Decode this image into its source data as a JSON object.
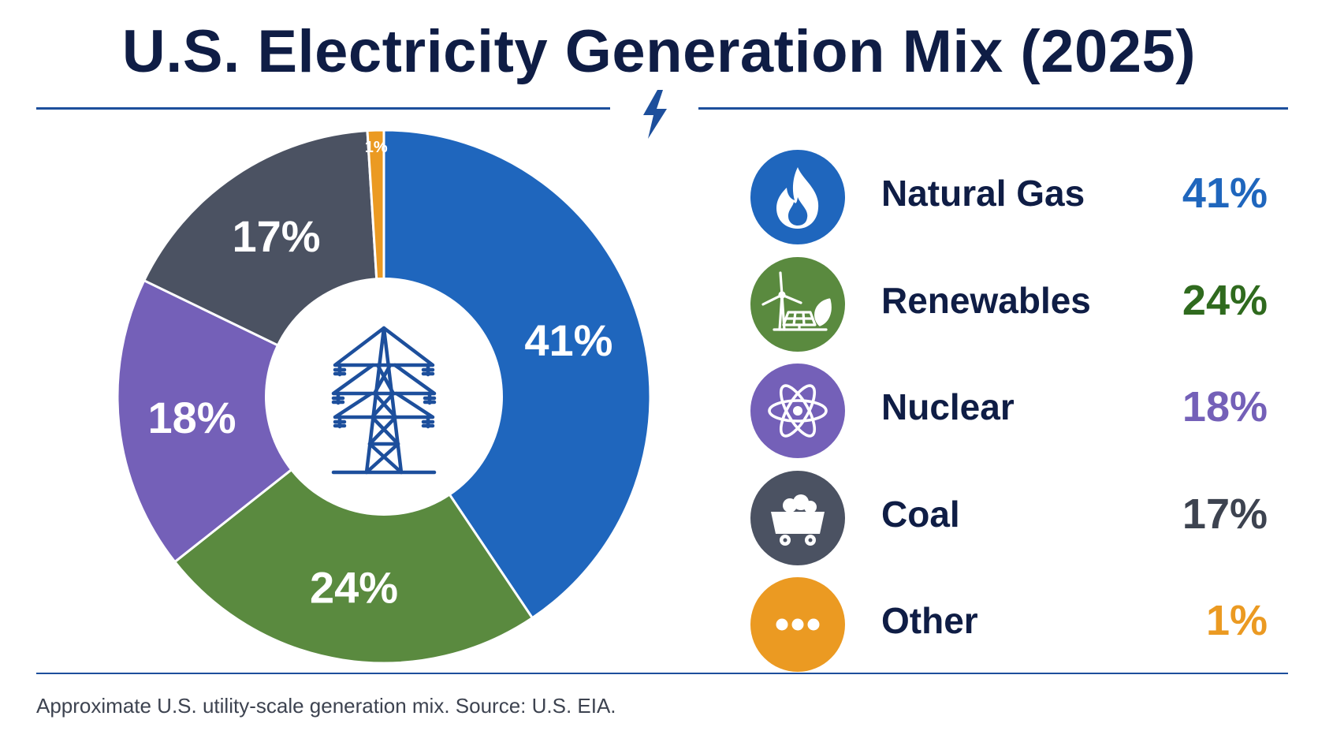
{
  "title": "U.S. Electricity Generation Mix (2025)",
  "footnote": "Approximate U.S. utility-scale generation mix. Source: U.S. EIA.",
  "chart_data": {
    "type": "pie",
    "title": "U.S. Electricity Generation Mix (2025)",
    "categories": [
      "Natural Gas",
      "Renewables",
      "Nuclear",
      "Coal",
      "Other"
    ],
    "values": [
      41,
      24,
      18,
      17,
      1
    ],
    "labels": [
      "41%",
      "24%",
      "18%",
      "17%",
      "1%"
    ],
    "colors": [
      "#1f66bd",
      "#5a8a3f",
      "#7460b8",
      "#4b5262",
      "#eb9a22"
    ],
    "donut": true,
    "start": "top, clockwise",
    "center_icon": "transmission-tower-icon",
    "legend_position": "right"
  },
  "legend": [
    {
      "name": "Natural Gas",
      "value": "41%",
      "color": "#1f66bd",
      "value_color": "#1f66bd",
      "icon": "flame-icon"
    },
    {
      "name": "Renewables",
      "value": "24%",
      "color": "#5a8a3f",
      "value_color": "#2f6a1e",
      "icon": "wind-solar-leaf-icon"
    },
    {
      "name": "Nuclear",
      "value": "18%",
      "color": "#7460b8",
      "value_color": "#7460b8",
      "icon": "atom-icon"
    },
    {
      "name": "Coal",
      "value": "17%",
      "color": "#4b5262",
      "value_color": "#3d4350",
      "icon": "mine-cart-icon"
    },
    {
      "name": "Other",
      "value": "1%",
      "color": "#eb9a22",
      "value_color": "#eb9a22",
      "icon": "ellipsis-icon"
    }
  ],
  "decorations": {
    "header_icon": "lightning-bolt-icon",
    "accent_color": "#1d4f9c"
  }
}
